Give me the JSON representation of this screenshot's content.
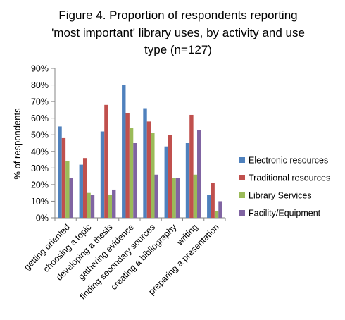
{
  "chart_data": {
    "type": "bar",
    "title_lines": [
      "Figure 4. Proportion of respondents reporting",
      "'most important' library uses, by activity and use",
      "type (n=127)"
    ],
    "ylabel": "% of respondents",
    "xlabel": "",
    "ylim": [
      0,
      90
    ],
    "y_ticks": [
      "0%",
      "10%",
      "20%",
      "30%",
      "40%",
      "50%",
      "60%",
      "70%",
      "80%",
      "90%"
    ],
    "grid": false,
    "legend_position": "right",
    "categories": [
      "getting oriented",
      "choosing a topic",
      "developing a thesis",
      "gathering evidence",
      "finding secondary sources",
      "creating a bibliography",
      "writing",
      "preparing a presentation"
    ],
    "series": [
      {
        "name": "Electronic resources",
        "color": "#4F81BD",
        "values": [
          55,
          32,
          52,
          80,
          66,
          43,
          45,
          14
        ]
      },
      {
        "name": "Traditional resources",
        "color": "#C0504D",
        "values": [
          48,
          36,
          68,
          63,
          58,
          50,
          62,
          21
        ]
      },
      {
        "name": "Library Services",
        "color": "#9BBB59",
        "values": [
          34,
          15,
          14,
          54,
          51,
          24,
          26,
          4
        ]
      },
      {
        "name": "Facility/Equipment",
        "color": "#8064A2",
        "values": [
          24,
          14,
          17,
          45,
          26,
          24,
          53,
          10
        ]
      }
    ]
  }
}
